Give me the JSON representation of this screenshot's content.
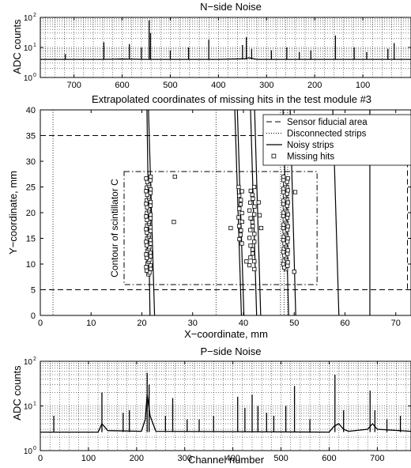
{
  "chart_data": [
    {
      "type": "line",
      "title": "N−side Noise",
      "ylabel": "ADC counts",
      "xlabel": "",
      "y_scale": "log",
      "ylim": [
        1,
        100
      ],
      "xlim": [
        770,
        0
      ],
      "x_reversed": true,
      "grid": true,
      "x_ticks": [
        "700",
        "600",
        "500",
        "400",
        "300",
        "200",
        "100"
      ],
      "x_tick_values": [
        700,
        600,
        500,
        400,
        300,
        200,
        100
      ],
      "y_ticks": [
        "10",
        "10",
        "10"
      ],
      "y_tick_exps": [
        "0",
        "1",
        "2"
      ],
      "baseline": 4,
      "series": [
        {
          "values": [
            [
              770,
              4
            ],
            [
              700,
              4
            ],
            [
              640,
              4
            ],
            [
              600,
              4.1
            ],
            [
              548,
              4
            ],
            [
              400,
              4
            ],
            [
              345,
              4.2
            ],
            [
              337,
              4.5
            ],
            [
              320,
              4
            ],
            [
              250,
              4
            ],
            [
              160,
              4
            ],
            [
              120,
              4
            ],
            [
              35,
              4
            ],
            [
              0,
              4
            ]
          ]
        }
      ],
      "spikes": [
        {
          "x": 718,
          "y": 6
        },
        {
          "x": 638,
          "y": 15
        },
        {
          "x": 585,
          "y": 13
        },
        {
          "x": 560,
          "y": 10
        },
        {
          "x": 544,
          "y": 80
        },
        {
          "x": 541,
          "y": 30
        },
        {
          "x": 500,
          "y": 8
        },
        {
          "x": 462,
          "y": 10
        },
        {
          "x": 420,
          "y": 18
        },
        {
          "x": 350,
          "y": 12
        },
        {
          "x": 342,
          "y": 22
        },
        {
          "x": 331,
          "y": 9
        },
        {
          "x": 290,
          "y": 8
        },
        {
          "x": 258,
          "y": 10
        },
        {
          "x": 232,
          "y": 7
        },
        {
          "x": 208,
          "y": 8
        },
        {
          "x": 157,
          "y": 25
        },
        {
          "x": 118,
          "y": 10
        },
        {
          "x": 92,
          "y": 7
        },
        {
          "x": 48,
          "y": 9
        },
        {
          "x": 35,
          "y": 14
        }
      ]
    },
    {
      "type": "scatter",
      "title": "Extrapolated coordinates of missing hits in the test module #3",
      "xlabel": "X−coordinate, mm",
      "ylabel": "Y−coordinate, mm",
      "xlim": [
        0,
        73
      ],
      "ylim": [
        0,
        40
      ],
      "x_ticks": [
        0,
        10,
        20,
        30,
        40,
        50,
        60,
        70
      ],
      "y_ticks": [
        0,
        5,
        10,
        15,
        20,
        25,
        30,
        35,
        40
      ],
      "legend": {
        "placement": "top-right",
        "entries": [
          "Sensor fiducial area",
          "Disconnected strips",
          "Noisy strips",
          "Missing hits"
        ]
      },
      "fiducial_area": {
        "x": [
          0,
          73
        ],
        "y": [
          5,
          35
        ]
      },
      "scintillator_contour": {
        "label": "Contour of scintillator C",
        "x": [
          16.5,
          54.5
        ],
        "y": [
          6,
          28
        ]
      },
      "disconnected_strips_x": [
        2.5,
        34.6,
        47.3,
        48.0,
        48.7
      ],
      "noisy_strips": [
        [
          [
            21.0,
            40
          ],
          [
            21.6,
            0
          ]
        ],
        [
          [
            21.3,
            40
          ],
          [
            22.5,
            0
          ]
        ],
        [
          [
            38.3,
            40
          ],
          [
            39.6,
            0
          ]
        ],
        [
          [
            38.8,
            40
          ],
          [
            40.1,
            0
          ]
        ],
        [
          [
            41.4,
            40
          ],
          [
            42.6,
            0
          ]
        ],
        [
          [
            42.2,
            40
          ],
          [
            43.4,
            0
          ]
        ],
        [
          [
            47.8,
            40
          ],
          [
            48.9,
            0
          ]
        ],
        [
          [
            49.2,
            40
          ],
          [
            50.3,
            0
          ]
        ],
        [
          [
            57.6,
            40
          ],
          [
            58.8,
            0
          ]
        ],
        [
          [
            64.9,
            40
          ],
          [
            64.9,
            0
          ]
        ]
      ],
      "missing_hits_columns": [
        {
          "x": 21.3,
          "y_from": 8,
          "y_to": 27,
          "count": 55,
          "spread": 0.45
        },
        {
          "x": 39.4,
          "y_from": 14,
          "y_to": 25,
          "count": 14,
          "spread": 0.35
        },
        {
          "x": 41.7,
          "y_from": 9,
          "y_to": 25,
          "count": 22,
          "spread": 0.5
        },
        {
          "x": 48.3,
          "y_from": 9,
          "y_to": 27,
          "count": 55,
          "spread": 0.45
        }
      ],
      "missing_hits_extra": [
        [
          26.5,
          27
        ],
        [
          26.3,
          18.2
        ],
        [
          37.5,
          17
        ],
        [
          43.0,
          22
        ],
        [
          43.2,
          19.5
        ],
        [
          43.5,
          17
        ],
        [
          50.2,
          24
        ],
        [
          50.0,
          8.5
        ],
        [
          40.6,
          10.5
        ]
      ]
    },
    {
      "type": "line",
      "title": "P−side Noise",
      "ylabel": "ADC counts",
      "xlabel": "Channel number",
      "y_scale": "log",
      "ylim": [
        1,
        100
      ],
      "xlim": [
        0,
        770
      ],
      "grid": true,
      "x_ticks": [
        "0",
        "100",
        "200",
        "300",
        "400",
        "500",
        "600",
        "700"
      ],
      "x_tick_values": [
        0,
        100,
        200,
        300,
        400,
        500,
        600,
        700
      ],
      "y_ticks": [
        "10",
        "10",
        "10"
      ],
      "y_tick_exps": [
        "0",
        "1",
        "2"
      ],
      "baseline": 2.6,
      "series": [
        {
          "values": [
            [
              0,
              2.6
            ],
            [
              120,
              2.6
            ],
            [
              128,
              4
            ],
            [
              140,
              2.8
            ],
            [
              210,
              2.7
            ],
            [
              218,
              5
            ],
            [
              222,
              18
            ],
            [
              228,
              6
            ],
            [
              240,
              2.7
            ],
            [
              600,
              2.6
            ],
            [
              610,
              3.5
            ],
            [
              620,
              4
            ],
            [
              630,
              3
            ],
            [
              640,
              2.7
            ],
            [
              680,
              3
            ],
            [
              690,
              4
            ],
            [
              700,
              3
            ],
            [
              770,
              2.7
            ]
          ]
        }
      ],
      "spikes": [
        {
          "x": 28,
          "y": 6
        },
        {
          "x": 128,
          "y": 20
        },
        {
          "x": 172,
          "y": 7
        },
        {
          "x": 185,
          "y": 8
        },
        {
          "x": 222,
          "y": 55
        },
        {
          "x": 226,
          "y": 30
        },
        {
          "x": 260,
          "y": 6
        },
        {
          "x": 275,
          "y": 15
        },
        {
          "x": 305,
          "y": 5
        },
        {
          "x": 330,
          "y": 5
        },
        {
          "x": 360,
          "y": 6
        },
        {
          "x": 410,
          "y": 16
        },
        {
          "x": 425,
          "y": 9
        },
        {
          "x": 440,
          "y": 18
        },
        {
          "x": 452,
          "y": 10
        },
        {
          "x": 470,
          "y": 7
        },
        {
          "x": 485,
          "y": 6
        },
        {
          "x": 510,
          "y": 10
        },
        {
          "x": 528,
          "y": 28
        },
        {
          "x": 560,
          "y": 5
        },
        {
          "x": 612,
          "y": 50
        },
        {
          "x": 630,
          "y": 8
        },
        {
          "x": 685,
          "y": 22
        },
        {
          "x": 695,
          "y": 8
        },
        {
          "x": 720,
          "y": 5
        },
        {
          "x": 748,
          "y": 6
        }
      ]
    }
  ]
}
